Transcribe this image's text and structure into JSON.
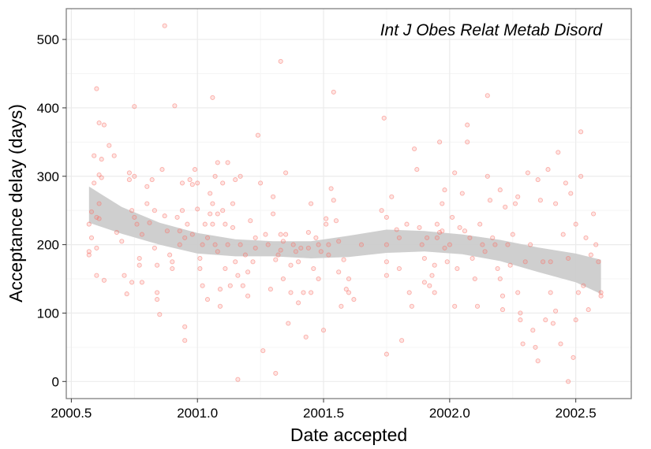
{
  "chart_data": {
    "type": "scatter",
    "title": "",
    "annotation": "Int J Obes Relat Metab Disord",
    "xlabel": "Date accepted",
    "ylabel": "Acceptance delay (days)",
    "xlim": [
      2000.48,
      2002.72
    ],
    "ylim": [
      -25,
      545
    ],
    "xticks": [
      2000.5,
      2001.0,
      2001.5,
      2002.0,
      2002.5
    ],
    "xtick_labels": [
      "2000.5",
      "2001.0",
      "2001.5",
      "2002.0",
      "2002.5"
    ],
    "yticks": [
      0,
      100,
      200,
      300,
      400,
      500
    ],
    "ytick_labels": [
      "0",
      "100",
      "200",
      "300",
      "400",
      "500"
    ],
    "grid": true,
    "colors": {
      "points": "#f8766d",
      "band": "#cccccc",
      "grid": "#ebebeb",
      "border": "#7f7f7f"
    },
    "smooth_band": {
      "x": [
        2000.57,
        2000.7,
        2000.85,
        2001.0,
        2001.15,
        2001.3,
        2001.45,
        2001.6,
        2001.75,
        2001.9,
        2002.05,
        2002.2,
        2002.35,
        2002.5,
        2002.6
      ],
      "upper": [
        285,
        255,
        232,
        217,
        208,
        205,
        205,
        213,
        222,
        220,
        215,
        207,
        196,
        187,
        178
      ],
      "lower": [
        232,
        216,
        200,
        187,
        183,
        183,
        180,
        182,
        188,
        190,
        186,
        176,
        160,
        145,
        128
      ]
    },
    "points": [
      [
        2000.57,
        230
      ],
      [
        2000.57,
        190
      ],
      [
        2000.57,
        185
      ],
      [
        2000.58,
        248
      ],
      [
        2000.58,
        210
      ],
      [
        2000.59,
        330
      ],
      [
        2000.59,
        290
      ],
      [
        2000.6,
        240
      ],
      [
        2000.6,
        155
      ],
      [
        2000.6,
        195
      ],
      [
        2000.6,
        428
      ],
      [
        2000.61,
        302
      ],
      [
        2000.61,
        260
      ],
      [
        2000.61,
        238
      ],
      [
        2000.61,
        378
      ],
      [
        2000.62,
        325
      ],
      [
        2000.62,
        298
      ],
      [
        2000.63,
        375
      ],
      [
        2000.63,
        148
      ],
      [
        2000.65,
        345
      ],
      [
        2000.67,
        330
      ],
      [
        2000.68,
        218
      ],
      [
        2000.7,
        205
      ],
      [
        2000.71,
        155
      ],
      [
        2000.72,
        128
      ],
      [
        2000.73,
        305
      ],
      [
        2000.73,
        295
      ],
      [
        2000.74,
        250
      ],
      [
        2000.74,
        145
      ],
      [
        2000.75,
        402
      ],
      [
        2000.75,
        300
      ],
      [
        2000.75,
        240
      ],
      [
        2000.76,
        230
      ],
      [
        2000.77,
        180
      ],
      [
        2000.77,
        170
      ],
      [
        2000.78,
        215
      ],
      [
        2000.78,
        145
      ],
      [
        2000.8,
        285
      ],
      [
        2000.8,
        260
      ],
      [
        2000.81,
        232
      ],
      [
        2000.82,
        295
      ],
      [
        2000.83,
        250
      ],
      [
        2000.83,
        195
      ],
      [
        2000.84,
        170
      ],
      [
        2000.84,
        130
      ],
      [
        2000.84,
        120
      ],
      [
        2000.85,
        98
      ],
      [
        2000.86,
        310
      ],
      [
        2000.87,
        242
      ],
      [
        2000.87,
        520
      ],
      [
        2000.88,
        220
      ],
      [
        2000.89,
        185
      ],
      [
        2000.9,
        175
      ],
      [
        2000.9,
        165
      ],
      [
        2000.91,
        403
      ],
      [
        2000.92,
        240
      ],
      [
        2000.93,
        220
      ],
      [
        2000.93,
        200
      ],
      [
        2000.94,
        290
      ],
      [
        2000.94,
        250
      ],
      [
        2000.95,
        210
      ],
      [
        2000.95,
        80
      ],
      [
        2000.95,
        60
      ],
      [
        2000.96,
        230
      ],
      [
        2000.97,
        295
      ],
      [
        2000.98,
        288
      ],
      [
        2000.98,
        215
      ],
      [
        2000.99,
        310
      ],
      [
        2001.0,
        290
      ],
      [
        2001.0,
        252
      ],
      [
        2001.01,
        180
      ],
      [
        2001.01,
        165
      ],
      [
        2001.02,
        140
      ],
      [
        2001.02,
        200
      ],
      [
        2001.03,
        230
      ],
      [
        2001.04,
        120
      ],
      [
        2001.04,
        210
      ],
      [
        2001.05,
        245
      ],
      [
        2001.05,
        275
      ],
      [
        2001.06,
        415
      ],
      [
        2001.06,
        260
      ],
      [
        2001.06,
        230
      ],
      [
        2001.07,
        300
      ],
      [
        2001.07,
        200
      ],
      [
        2001.08,
        190
      ],
      [
        2001.08,
        320
      ],
      [
        2001.08,
        245
      ],
      [
        2001.09,
        135
      ],
      [
        2001.09,
        110
      ],
      [
        2001.1,
        290
      ],
      [
        2001.1,
        250
      ],
      [
        2001.11,
        165
      ],
      [
        2001.11,
        230
      ],
      [
        2001.12,
        200
      ],
      [
        2001.12,
        320
      ],
      [
        2001.13,
        140
      ],
      [
        2001.14,
        260
      ],
      [
        2001.14,
        225
      ],
      [
        2001.15,
        175
      ],
      [
        2001.15,
        295
      ],
      [
        2001.16,
        155
      ],
      [
        2001.16,
        3
      ],
      [
        2001.17,
        300
      ],
      [
        2001.17,
        200
      ],
      [
        2001.18,
        140
      ],
      [
        2001.19,
        185
      ],
      [
        2001.2,
        125
      ],
      [
        2001.2,
        160
      ],
      [
        2001.21,
        235
      ],
      [
        2001.22,
        175
      ],
      [
        2001.23,
        210
      ],
      [
        2001.23,
        195
      ],
      [
        2001.24,
        360
      ],
      [
        2001.25,
        290
      ],
      [
        2001.26,
        45
      ],
      [
        2001.27,
        215
      ],
      [
        2001.28,
        200
      ],
      [
        2001.29,
        135
      ],
      [
        2001.3,
        245
      ],
      [
        2001.3,
        270
      ],
      [
        2001.31,
        178
      ],
      [
        2001.31,
        12
      ],
      [
        2001.32,
        185
      ],
      [
        2001.33,
        468
      ],
      [
        2001.33,
        215
      ],
      [
        2001.33,
        192
      ],
      [
        2001.34,
        205
      ],
      [
        2001.34,
        150
      ],
      [
        2001.35,
        215
      ],
      [
        2001.35,
        305
      ],
      [
        2001.36,
        85
      ],
      [
        2001.37,
        170
      ],
      [
        2001.37,
        130
      ],
      [
        2001.38,
        200
      ],
      [
        2001.39,
        190
      ],
      [
        2001.4,
        115
      ],
      [
        2001.4,
        175
      ],
      [
        2001.41,
        195
      ],
      [
        2001.42,
        130
      ],
      [
        2001.43,
        65
      ],
      [
        2001.44,
        218
      ],
      [
        2001.44,
        195
      ],
      [
        2001.45,
        260
      ],
      [
        2001.45,
        130
      ],
      [
        2001.46,
        165
      ],
      [
        2001.47,
        210
      ],
      [
        2001.48,
        200
      ],
      [
        2001.48,
        150
      ],
      [
        2001.49,
        190
      ],
      [
        2001.5,
        75
      ],
      [
        2001.51,
        238
      ],
      [
        2001.51,
        230
      ],
      [
        2001.52,
        200
      ],
      [
        2001.52,
        185
      ],
      [
        2001.53,
        282
      ],
      [
        2001.54,
        423
      ],
      [
        2001.54,
        265
      ],
      [
        2001.55,
        235
      ],
      [
        2001.56,
        205
      ],
      [
        2001.56,
        160
      ],
      [
        2001.57,
        110
      ],
      [
        2001.58,
        178
      ],
      [
        2001.59,
        135
      ],
      [
        2001.6,
        150
      ],
      [
        2001.6,
        130
      ],
      [
        2001.62,
        120
      ],
      [
        2001.65,
        200
      ],
      [
        2001.73,
        250
      ],
      [
        2001.74,
        385
      ],
      [
        2001.75,
        240
      ],
      [
        2001.75,
        200
      ],
      [
        2001.75,
        175
      ],
      [
        2001.75,
        155
      ],
      [
        2001.75,
        40
      ],
      [
        2001.77,
        270
      ],
      [
        2001.79,
        222
      ],
      [
        2001.8,
        210
      ],
      [
        2001.8,
        165
      ],
      [
        2001.81,
        60
      ],
      [
        2001.83,
        230
      ],
      [
        2001.84,
        130
      ],
      [
        2001.85,
        110
      ],
      [
        2001.86,
        340
      ],
      [
        2001.87,
        310
      ],
      [
        2001.88,
        225
      ],
      [
        2001.89,
        200
      ],
      [
        2001.9,
        180
      ],
      [
        2001.9,
        145
      ],
      [
        2001.91,
        210
      ],
      [
        2001.92,
        140
      ],
      [
        2001.93,
        155
      ],
      [
        2001.94,
        170
      ],
      [
        2001.94,
        130
      ],
      [
        2001.95,
        230
      ],
      [
        2001.95,
        210
      ],
      [
        2001.96,
        350
      ],
      [
        2001.96,
        218
      ],
      [
        2001.97,
        260
      ],
      [
        2001.97,
        220
      ],
      [
        2001.98,
        280
      ],
      [
        2001.98,
        195
      ],
      [
        2001.99,
        175
      ],
      [
        2002.0,
        200
      ],
      [
        2002.01,
        240
      ],
      [
        2002.02,
        305
      ],
      [
        2002.02,
        110
      ],
      [
        2002.03,
        165
      ],
      [
        2002.04,
        225
      ],
      [
        2002.05,
        275
      ],
      [
        2002.06,
        220
      ],
      [
        2002.07,
        375
      ],
      [
        2002.07,
        350
      ],
      [
        2002.08,
        210
      ],
      [
        2002.09,
        180
      ],
      [
        2002.1,
        150
      ],
      [
        2002.11,
        110
      ],
      [
        2002.12,
        230
      ],
      [
        2002.13,
        200
      ],
      [
        2002.14,
        190
      ],
      [
        2002.15,
        418
      ],
      [
        2002.15,
        300
      ],
      [
        2002.16,
        265
      ],
      [
        2002.17,
        210
      ],
      [
        2002.18,
        200
      ],
      [
        2002.19,
        165
      ],
      [
        2002.2,
        280
      ],
      [
        2002.2,
        150
      ],
      [
        2002.21,
        125
      ],
      [
        2002.21,
        105
      ],
      [
        2002.22,
        255
      ],
      [
        2002.23,
        200
      ],
      [
        2002.24,
        170
      ],
      [
        2002.25,
        215
      ],
      [
        2002.26,
        260
      ],
      [
        2002.27,
        270
      ],
      [
        2002.27,
        130
      ],
      [
        2002.28,
        100
      ],
      [
        2002.28,
        90
      ],
      [
        2002.29,
        55
      ],
      [
        2002.3,
        175
      ],
      [
        2002.31,
        305
      ],
      [
        2002.32,
        200
      ],
      [
        2002.33,
        75
      ],
      [
        2002.34,
        50
      ],
      [
        2002.35,
        30
      ],
      [
        2002.35,
        295
      ],
      [
        2002.36,
        265
      ],
      [
        2002.37,
        175
      ],
      [
        2002.38,
        90
      ],
      [
        2002.39,
        310
      ],
      [
        2002.4,
        130
      ],
      [
        2002.4,
        175
      ],
      [
        2002.41,
        85
      ],
      [
        2002.42,
        260
      ],
      [
        2002.42,
        103
      ],
      [
        2002.43,
        335
      ],
      [
        2002.44,
        55
      ],
      [
        2002.45,
        215
      ],
      [
        2002.46,
        290
      ],
      [
        2002.47,
        0
      ],
      [
        2002.47,
        180
      ],
      [
        2002.48,
        275
      ],
      [
        2002.49,
        35
      ],
      [
        2002.5,
        230
      ],
      [
        2002.5,
        90
      ],
      [
        2002.51,
        130
      ],
      [
        2002.52,
        300
      ],
      [
        2002.52,
        365
      ],
      [
        2002.53,
        140
      ],
      [
        2002.54,
        210
      ],
      [
        2002.55,
        105
      ],
      [
        2002.56,
        185
      ],
      [
        2002.57,
        245
      ],
      [
        2002.58,
        200
      ],
      [
        2002.59,
        175
      ],
      [
        2002.6,
        130
      ],
      [
        2002.6,
        125
      ]
    ]
  }
}
